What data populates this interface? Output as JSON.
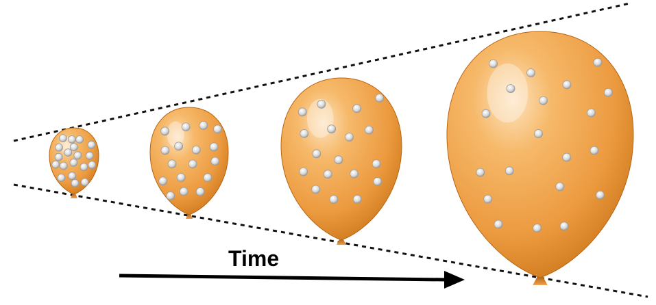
{
  "diagram": {
    "arrow_label": "Time",
    "balloon_count": 4,
    "colors": {
      "balloon_light": "#fbd6a4",
      "balloon_mid": "#f0a44c",
      "balloon_dark": "#c66f12",
      "knot": "#d9822b",
      "dot": "#d8d8d8",
      "dot_edge": "#9a9a9a",
      "guide_lines": "#111111",
      "arrow": "#000000"
    }
  }
}
